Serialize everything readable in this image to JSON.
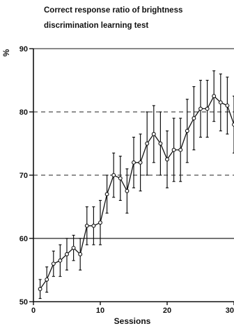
{
  "chart_data": {
    "type": "line",
    "title_lines": [
      "Correct response ratio of brightness",
      "discrimination learning test"
    ],
    "xlabel": "Sessions",
    "ylabel": "%",
    "xlim": [
      0,
      30
    ],
    "ylim": [
      50,
      90
    ],
    "x_ticks": [
      0,
      10,
      20,
      30
    ],
    "x_tick_labels": [
      "0",
      "10",
      "20",
      "30"
    ],
    "y_ticks": [
      50,
      60,
      70,
      80,
      90
    ],
    "y_tick_labels": [
      "50",
      "60",
      "70",
      "80",
      "90"
    ],
    "reference_lines": [
      60,
      70,
      80
    ],
    "grid": false,
    "series": [
      {
        "x": [
          1,
          2,
          3,
          4,
          5,
          6,
          7,
          8,
          9,
          10,
          11,
          12,
          13,
          14,
          15,
          16,
          17,
          18,
          19,
          20,
          21,
          22,
          23,
          24,
          25,
          26,
          27,
          28,
          29,
          30
        ],
        "values": [
          52.0,
          53.5,
          56.0,
          56.5,
          57.5,
          58.5,
          57.5,
          62.0,
          62.0,
          62.5,
          67.0,
          70.0,
          69.5,
          67.5,
          72.0,
          72.0,
          75.0,
          76.5,
          75.0,
          72.5,
          74.0,
          74.0,
          77.0,
          79.0,
          80.5,
          80.5,
          82.5,
          81.5,
          81.0,
          78.0
        ],
        "error": [
          1.5,
          2.0,
          2.0,
          2.5,
          2.5,
          2.0,
          2.5,
          3.0,
          3.0,
          3.5,
          3.0,
          3.5,
          3.5,
          3.5,
          4.0,
          4.5,
          5.0,
          4.5,
          5.0,
          4.5,
          5.0,
          5.0,
          5.0,
          5.0,
          4.5,
          4.5,
          4.0,
          4.5,
          4.5,
          4.5
        ]
      }
    ]
  }
}
